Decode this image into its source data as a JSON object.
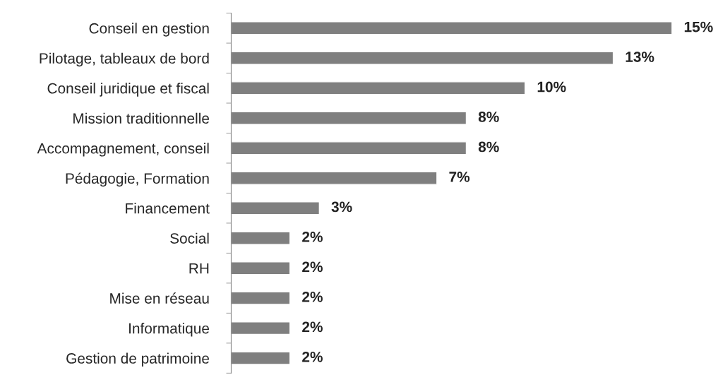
{
  "chart_data": {
    "type": "bar",
    "orientation": "horizontal",
    "categories": [
      "Conseil en gestion",
      "Pilotage, tableaux de bord",
      "Conseil juridique et fiscal",
      "Mission traditionnelle",
      "Accompagnement, conseil",
      "Pédagogie, Formation",
      "Financement",
      "Social",
      "RH",
      "Mise en réseau",
      "Informatique",
      "Gestion de patrimoine"
    ],
    "values": [
      15,
      13,
      10,
      8,
      8,
      7,
      3,
      2,
      2,
      2,
      2,
      2
    ],
    "value_labels": [
      "15%",
      "13%",
      "10%",
      "8%",
      "8%",
      "7%",
      "3%",
      "2%",
      "2%",
      "2%",
      "2%",
      "2%"
    ],
    "color": "#7f7f7f",
    "grid": false,
    "legend": false
  }
}
